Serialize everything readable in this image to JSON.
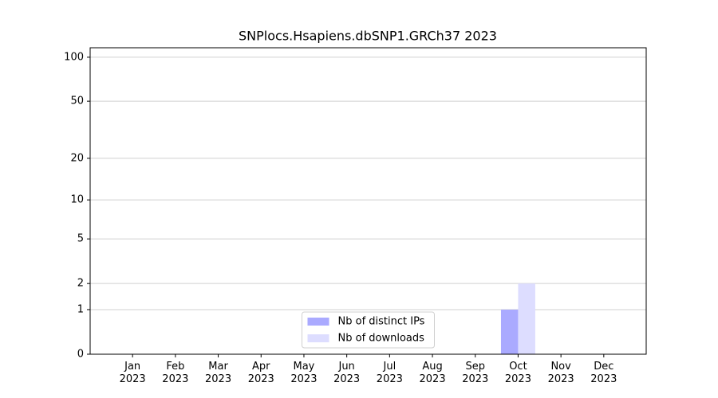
{
  "chart_data": {
    "type": "bar",
    "title": "SNPlocs.Hsapiens.dbSNP1.GRCh37 2023",
    "categories": [
      "Jan\n2023",
      "Feb\n2023",
      "Mar\n2023",
      "Apr\n2023",
      "May\n2023",
      "Jun\n2023",
      "Jul\n2023",
      "Aug\n2023",
      "Sep\n2023",
      "Oct\n2023",
      "Nov\n2023",
      "Dec\n2023"
    ],
    "series": [
      {
        "name": "Nb of distinct IPs",
        "color": "#aaaaff",
        "values": [
          0,
          0,
          0,
          0,
          0,
          0,
          0,
          0,
          0,
          1,
          0,
          0
        ]
      },
      {
        "name": "Nb of downloads",
        "color": "#ddddff",
        "values": [
          0,
          0,
          0,
          0,
          0,
          0,
          0,
          0,
          0,
          2,
          0,
          0
        ]
      }
    ],
    "y_scale": "log1p",
    "ylim": [
      0,
      116
    ],
    "yticks": [
      0,
      1,
      2,
      5,
      10,
      20,
      50,
      100
    ],
    "grid": true,
    "legend": "lower center"
  }
}
